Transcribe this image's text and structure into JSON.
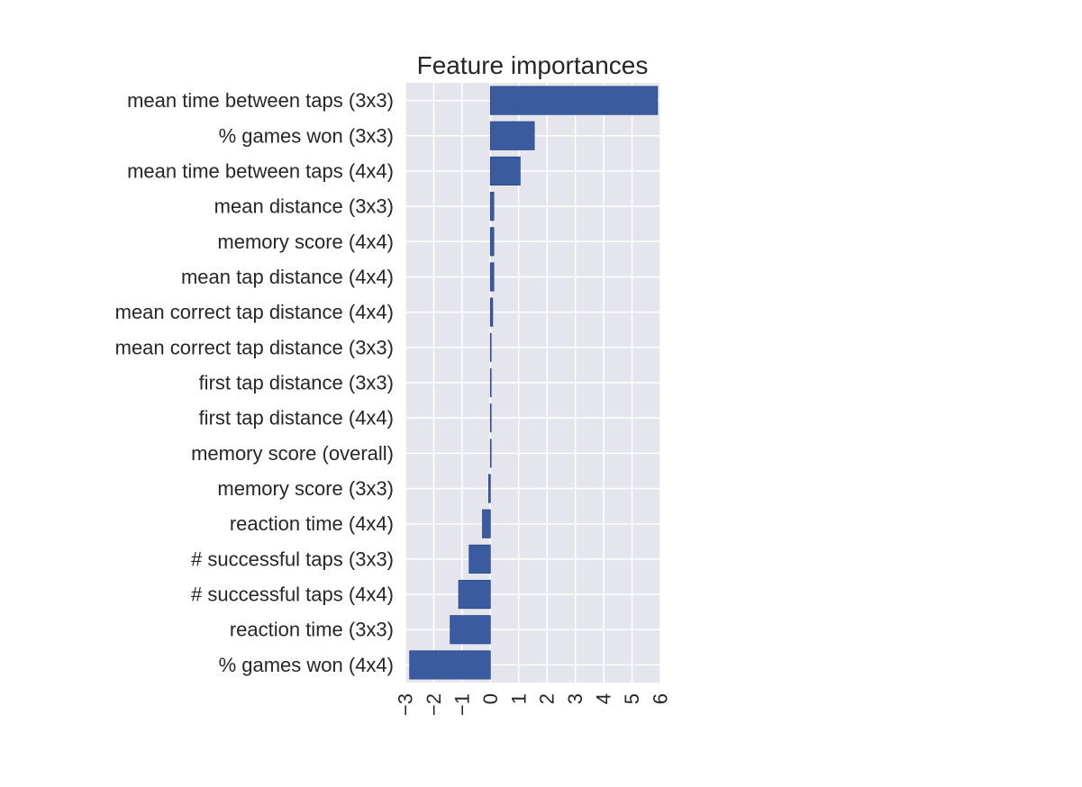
{
  "chart_data": {
    "type": "bar",
    "orientation": "horizontal",
    "title": "Feature importances",
    "xlabel": "",
    "ylabel": "",
    "categories": [
      "mean time between taps (3x3)",
      "% games won (3x3)",
      "mean time between taps (4x4)",
      "mean distance (3x3)",
      "memory score (4x4)",
      "mean tap distance (4x4)",
      "mean correct tap distance (4x4)",
      "mean correct tap distance (3x3)",
      "first tap distance (3x3)",
      "first tap distance (4x4)",
      "memory score (overall)",
      "memory score (3x3)",
      "reaction time (4x4)",
      "# successful taps (3x3)",
      "# successful taps (4x4)",
      "reaction time (3x3)",
      "% games won (4x4)"
    ],
    "values": [
      5.9,
      1.55,
      1.05,
      0.12,
      0.12,
      0.12,
      0.08,
      0.02,
      0.02,
      0.02,
      0.01,
      -0.06,
      -0.28,
      -0.75,
      -1.12,
      -1.42,
      -2.85
    ],
    "xlim": [
      -3,
      6
    ],
    "xticks": [
      "-3",
      "-2",
      "-1",
      "0",
      "1",
      "2",
      "3",
      "4",
      "5",
      "6"
    ],
    "grid": true,
    "colors": {
      "bar": "#3a5ba0",
      "bar_edge": "#2d4a85",
      "background": "#e5e5ee",
      "grid": "#ffffff"
    }
  }
}
